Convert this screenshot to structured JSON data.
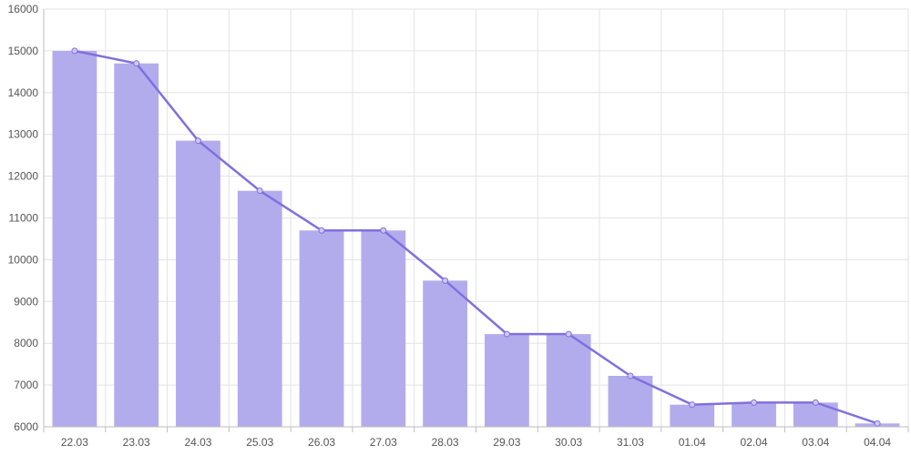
{
  "chart_data": {
    "type": "bar",
    "overlay": "line",
    "title": "",
    "xlabel": "",
    "ylabel": "",
    "categories": [
      "22.03",
      "23.03",
      "24.03",
      "25.03",
      "26.03",
      "27.03",
      "28.03",
      "29.03",
      "30.03",
      "31.03",
      "01.04",
      "02.04",
      "03.04",
      "04.04"
    ],
    "values": [
      15000,
      14700,
      12850,
      11650,
      10700,
      10700,
      9500,
      8220,
      8220,
      7220,
      6530,
      6580,
      6580,
      6080
    ],
    "ylim": [
      6000,
      16000
    ],
    "yticks": [
      6000,
      7000,
      8000,
      9000,
      10000,
      11000,
      12000,
      13000,
      14000,
      15000,
      16000
    ],
    "grid": true,
    "legend": "none",
    "colors": {
      "bar": "#b3acec",
      "line": "#8070e0"
    }
  }
}
